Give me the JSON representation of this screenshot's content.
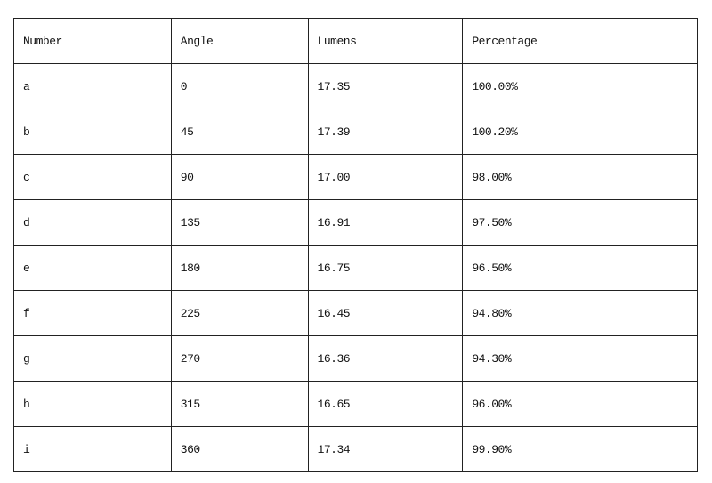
{
  "table": {
    "headers": [
      "Number",
      "Angle",
      "Lumens",
      "Percentage"
    ],
    "rows": [
      [
        "a",
        "0",
        "17.35",
        "100.00%"
      ],
      [
        "b",
        "45",
        "17.39",
        "100.20%"
      ],
      [
        "c",
        "90",
        "17.00",
        "98.00%"
      ],
      [
        "d",
        "135",
        "16.91",
        "97.50%"
      ],
      [
        "e",
        "180",
        "16.75",
        "96.50%"
      ],
      [
        "f",
        "225",
        "16.45",
        "94.80%"
      ],
      [
        "g",
        "270",
        "16.36",
        "94.30%"
      ],
      [
        "h",
        "315",
        "16.65",
        "96.00%"
      ],
      [
        "i",
        "360",
        "17.34",
        "99.90%"
      ]
    ]
  }
}
